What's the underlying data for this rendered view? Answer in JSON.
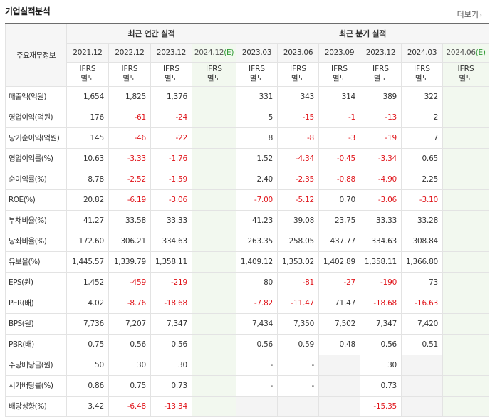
{
  "header": {
    "title": "기업실적분석",
    "more_label": "더보기"
  },
  "table": {
    "label_header": "주요재무정보",
    "groups": {
      "annual": "최근 연간 실적",
      "quarter": "최근 분기 실적"
    },
    "periods": [
      {
        "label": "2021.12",
        "est": false
      },
      {
        "label": "2022.12",
        "est": false
      },
      {
        "label": "2023.12",
        "est": false
      },
      {
        "label": "2024.12",
        "est": true
      },
      {
        "label": "2023.03",
        "est": false
      },
      {
        "label": "2023.06",
        "est": false
      },
      {
        "label": "2023.09",
        "est": false
      },
      {
        "label": "2023.12",
        "est": false
      },
      {
        "label": "2024.03",
        "est": false
      },
      {
        "label": "2024.06",
        "est": true
      }
    ],
    "est_suffix": "(E)",
    "ifrs": {
      "line1": "IFRS",
      "line2": "별도"
    },
    "rows": [
      {
        "label": "매출액(억원)",
        "values": [
          "1,654",
          "1,825",
          "1,376",
          "",
          "331",
          "343",
          "314",
          "389",
          "322",
          ""
        ]
      },
      {
        "label": "영업이익(억원)",
        "values": [
          "176",
          "-61",
          "-24",
          "",
          "5",
          "-15",
          "-1",
          "-13",
          "2",
          ""
        ]
      },
      {
        "label": "당기순이익(억원)",
        "values": [
          "145",
          "-46",
          "-22",
          "",
          "8",
          "-8",
          "-3",
          "-19",
          "7",
          ""
        ]
      },
      {
        "label": "영업이익률(%)",
        "values": [
          "10.63",
          "-3.33",
          "-1.76",
          "",
          "1.52",
          "-4.34",
          "-0.45",
          "-3.34",
          "0.65",
          ""
        ]
      },
      {
        "label": "순이익률(%)",
        "values": [
          "8.78",
          "-2.52",
          "-1.59",
          "",
          "2.40",
          "-2.35",
          "-0.88",
          "-4.90",
          "2.25",
          ""
        ]
      },
      {
        "label": "ROE(%)",
        "values": [
          "20.82",
          "-6.19",
          "-3.06",
          "",
          "-7.00",
          "-5.12",
          "0.70",
          "-3.06",
          "-3.10",
          ""
        ]
      },
      {
        "label": "부채비율(%)",
        "values": [
          "41.27",
          "33.58",
          "33.33",
          "",
          "41.23",
          "39.08",
          "23.75",
          "33.33",
          "33.28",
          ""
        ]
      },
      {
        "label": "당좌비율(%)",
        "values": [
          "172.60",
          "306.21",
          "334.63",
          "",
          "263.35",
          "258.05",
          "437.77",
          "334.63",
          "308.84",
          ""
        ]
      },
      {
        "label": "유보율(%)",
        "values": [
          "1,445.57",
          "1,339.79",
          "1,358.11",
          "",
          "1,409.12",
          "1,353.02",
          "1,402.89",
          "1,358.11",
          "1,366.80",
          ""
        ]
      },
      {
        "label": "EPS(원)",
        "values": [
          "1,452",
          "-459",
          "-219",
          "",
          "80",
          "-81",
          "-27",
          "-190",
          "73",
          ""
        ]
      },
      {
        "label": "PER(배)",
        "values": [
          "4.02",
          "-8.76",
          "-18.68",
          "",
          "-7.82",
          "-11.47",
          "71.47",
          "-18.68",
          "-16.63",
          ""
        ]
      },
      {
        "label": "BPS(원)",
        "values": [
          "7,736",
          "7,207",
          "7,347",
          "",
          "7,434",
          "7,350",
          "7,502",
          "7,347",
          "7,420",
          ""
        ]
      },
      {
        "label": "PBR(배)",
        "values": [
          "0.75",
          "0.56",
          "0.56",
          "",
          "0.56",
          "0.59",
          "0.48",
          "0.56",
          "0.51",
          ""
        ]
      },
      {
        "label": "주당배당금(원)",
        "values": [
          "50",
          "30",
          "30",
          "",
          "-",
          "-",
          "",
          "30",
          "",
          ""
        ]
      },
      {
        "label": "시가배당률(%)",
        "values": [
          "0.86",
          "0.75",
          "0.73",
          "",
          "-",
          "-",
          "",
          "0.73",
          "",
          ""
        ]
      },
      {
        "label": "배당성향(%)",
        "values": [
          "3.42",
          "-6.48",
          "-13.34",
          "",
          "",
          "",
          "",
          "-15.35",
          "",
          ""
        ]
      }
    ]
  },
  "colors": {
    "negative": "#e0151b",
    "ifrs": "#ff5a00",
    "estimate_bg": "#f2f8ef",
    "estimate_mark": "#2e9a33"
  }
}
